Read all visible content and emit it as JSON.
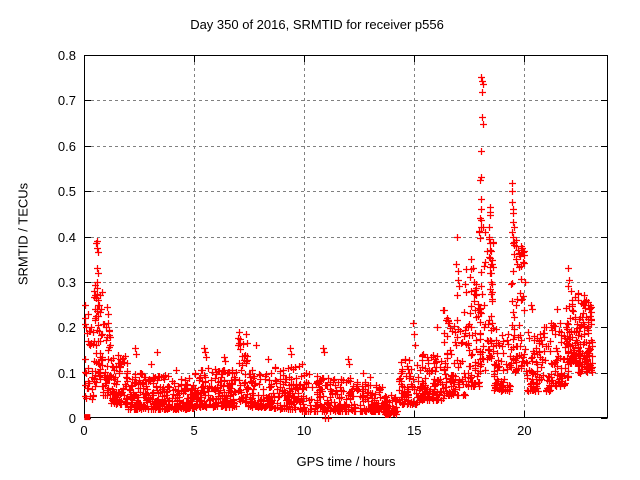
{
  "chart_data": {
    "type": "scatter",
    "title": "Day 350 of 2016, SRMTID for receiver p556",
    "xlabel": "GPS time / hours",
    "ylabel": "SRMTID / TECUs",
    "xlim": [
      0,
      23.8
    ],
    "ylim": [
      0,
      0.8
    ],
    "grid": true,
    "legend": false,
    "x_ticks": [
      {
        "value": 0,
        "label": "0"
      },
      {
        "value": 5,
        "label": "5"
      },
      {
        "value": 10,
        "label": "10"
      },
      {
        "value": 15,
        "label": "15"
      },
      {
        "value": 20,
        "label": "20"
      }
    ],
    "y_ticks": [
      {
        "value": 0.0,
        "label": "0"
      },
      {
        "value": 0.1,
        "label": "0.1"
      },
      {
        "value": 0.2,
        "label": "0.2"
      },
      {
        "value": 0.3,
        "label": "0.3"
      },
      {
        "value": 0.4,
        "label": "0.4"
      },
      {
        "value": 0.5,
        "label": "0.5"
      },
      {
        "value": 0.6,
        "label": "0.6"
      },
      {
        "value": 0.7,
        "label": "0.7"
      },
      {
        "value": 0.8,
        "label": "0.8"
      }
    ],
    "colors": {
      "marker": "#ff0000",
      "axis": "#000000",
      "grid": "#808080",
      "background": "#ffffff"
    },
    "marker": {
      "shape": "plus",
      "size": 7,
      "stroke_width": 1.25
    },
    "origin_square": {
      "x": 0.15,
      "y": 0.002,
      "size": 6
    },
    "seed": 73,
    "points_explicit": [
      [
        0.05,
        0.25
      ],
      [
        0.06,
        0.22
      ],
      [
        0.07,
        0.2
      ],
      [
        0.05,
        0.13
      ],
      [
        0.08,
        0.1
      ],
      [
        0.55,
        0.385
      ],
      [
        0.6,
        0.39
      ],
      [
        0.58,
        0.375
      ],
      [
        0.62,
        0.365
      ],
      [
        0.57,
        0.33
      ],
      [
        0.63,
        0.32
      ],
      [
        0.6,
        0.3
      ],
      [
        0.45,
        0.28
      ],
      [
        0.5,
        0.27
      ],
      [
        0.55,
        0.265
      ],
      [
        0.65,
        0.26
      ],
      [
        0.7,
        0.25
      ],
      [
        0.52,
        0.24
      ],
      [
        0.58,
        0.235
      ],
      [
        0.48,
        0.22
      ],
      [
        1.05,
        0.245
      ],
      [
        1.1,
        0.23
      ],
      [
        1.08,
        0.21
      ],
      [
        1.15,
        0.195
      ],
      [
        2.3,
        0.155
      ],
      [
        2.35,
        0.14
      ],
      [
        3.3,
        0.145
      ],
      [
        3.05,
        0.12
      ],
      [
        4.2,
        0.105
      ],
      [
        5.45,
        0.155
      ],
      [
        5.5,
        0.145
      ],
      [
        5.55,
        0.135
      ],
      [
        6.35,
        0.135
      ],
      [
        6.4,
        0.125
      ],
      [
        7.05,
        0.19
      ],
      [
        7.1,
        0.175
      ],
      [
        7.0,
        0.16
      ],
      [
        7.8,
        0.16
      ],
      [
        8.35,
        0.13
      ],
      [
        9.35,
        0.155
      ],
      [
        9.4,
        0.14
      ],
      [
        9.9,
        0.12
      ],
      [
        10.85,
        0.155
      ],
      [
        10.9,
        0.145
      ],
      [
        10.95,
        0.001
      ],
      [
        11.1,
        0.0
      ],
      [
        12.0,
        0.13
      ],
      [
        12.05,
        0.12
      ],
      [
        12.65,
        0.1
      ],
      [
        13.0,
        0.09
      ],
      [
        14.6,
        0.13
      ],
      [
        14.95,
        0.21
      ],
      [
        15.0,
        0.185
      ],
      [
        15.05,
        0.16
      ],
      [
        16.05,
        0.2
      ],
      [
        16.5,
        0.22
      ],
      [
        16.55,
        0.21
      ],
      [
        16.95,
        0.4
      ],
      [
        16.9,
        0.34
      ],
      [
        17.0,
        0.325
      ],
      [
        16.98,
        0.305
      ],
      [
        17.05,
        0.29
      ],
      [
        16.92,
        0.27
      ],
      [
        17.6,
        0.35
      ],
      [
        17.65,
        0.33
      ],
      [
        17.55,
        0.31
      ],
      [
        17.7,
        0.3
      ],
      [
        17.6,
        0.28
      ],
      [
        18.05,
        0.751
      ],
      [
        18.07,
        0.743
      ],
      [
        18.1,
        0.736
      ],
      [
        18.08,
        0.718
      ],
      [
        18.06,
        0.663
      ],
      [
        18.1,
        0.648
      ],
      [
        18.05,
        0.588
      ],
      [
        18.02,
        0.531
      ],
      [
        18.0,
        0.524
      ],
      [
        18.01,
        0.483
      ],
      [
        18.04,
        0.46
      ],
      [
        18.0,
        0.44
      ],
      [
        18.45,
        0.465
      ],
      [
        18.42,
        0.455
      ],
      [
        18.44,
        0.447
      ],
      [
        18.4,
        0.42
      ],
      [
        18.38,
        0.4
      ],
      [
        18.42,
        0.385
      ],
      [
        18.46,
        0.37
      ],
      [
        18.4,
        0.355
      ],
      [
        18.5,
        0.34
      ],
      [
        18.44,
        0.32
      ],
      [
        18.48,
        0.3
      ],
      [
        19.45,
        0.518
      ],
      [
        19.46,
        0.5
      ],
      [
        19.45,
        0.476
      ],
      [
        19.48,
        0.46
      ],
      [
        19.5,
        0.452
      ],
      [
        19.47,
        0.432
      ],
      [
        19.52,
        0.42
      ],
      [
        19.45,
        0.41
      ],
      [
        19.5,
        0.4
      ],
      [
        19.55,
        0.388
      ],
      [
        19.62,
        0.378
      ],
      [
        19.7,
        0.37
      ],
      [
        19.78,
        0.364
      ],
      [
        19.9,
        0.375
      ],
      [
        19.95,
        0.365
      ],
      [
        20.0,
        0.36
      ],
      [
        19.6,
        0.35
      ],
      [
        19.68,
        0.34
      ],
      [
        19.75,
        0.333
      ],
      [
        20.3,
        0.25
      ],
      [
        20.35,
        0.24
      ],
      [
        20.9,
        0.2
      ],
      [
        21.5,
        0.24
      ],
      [
        22.0,
        0.33
      ],
      [
        22.05,
        0.305
      ],
      [
        21.97,
        0.29
      ],
      [
        22.1,
        0.28
      ],
      [
        22.45,
        0.275
      ],
      [
        22.7,
        0.27
      ],
      [
        22.8,
        0.26
      ],
      [
        23.0,
        0.25
      ]
    ],
    "density_segments": [
      [
        0.02,
        0.4,
        28,
        0.04,
        0.24,
        1.8
      ],
      [
        0.4,
        0.8,
        48,
        0.07,
        0.3,
        1.5
      ],
      [
        0.8,
        1.2,
        42,
        0.05,
        0.22,
        1.7
      ],
      [
        1.2,
        2.0,
        85,
        0.03,
        0.14,
        2.0
      ],
      [
        2.0,
        3.0,
        95,
        0.02,
        0.1,
        2.0
      ],
      [
        3.0,
        4.0,
        95,
        0.02,
        0.095,
        2.0
      ],
      [
        4.0,
        5.0,
        95,
        0.02,
        0.09,
        2.0
      ],
      [
        5.0,
        6.0,
        95,
        0.025,
        0.115,
        2.0
      ],
      [
        6.0,
        7.0,
        95,
        0.025,
        0.11,
        2.0
      ],
      [
        7.0,
        7.4,
        38,
        0.035,
        0.185,
        1.6
      ],
      [
        7.4,
        8.6,
        95,
        0.025,
        0.11,
        2.0
      ],
      [
        8.6,
        9.8,
        95,
        0.02,
        0.115,
        2.0
      ],
      [
        9.8,
        11.3,
        105,
        0.015,
        0.1,
        2.2
      ],
      [
        11.3,
        12.4,
        85,
        0.015,
        0.09,
        2.2
      ],
      [
        12.4,
        13.6,
        85,
        0.015,
        0.08,
        2.2
      ],
      [
        13.6,
        14.3,
        55,
        0.008,
        0.05,
        1.6
      ],
      [
        14.3,
        15.2,
        75,
        0.03,
        0.13,
        1.8
      ],
      [
        15.2,
        16.3,
        95,
        0.04,
        0.145,
        1.8
      ],
      [
        16.3,
        17.3,
        85,
        0.05,
        0.24,
        2.0
      ],
      [
        17.3,
        18.0,
        75,
        0.07,
        0.33,
        1.9
      ],
      [
        17.95,
        18.2,
        30,
        0.1,
        0.44,
        1.4
      ],
      [
        18.3,
        18.6,
        40,
        0.13,
        0.4,
        1.5
      ],
      [
        18.6,
        19.4,
        65,
        0.06,
        0.2,
        1.8
      ],
      [
        19.4,
        20.1,
        65,
        0.1,
        0.4,
        1.7
      ],
      [
        20.1,
        21.2,
        85,
        0.06,
        0.2,
        2.0
      ],
      [
        21.2,
        22.0,
        70,
        0.07,
        0.22,
        1.8
      ],
      [
        21.9,
        22.5,
        65,
        0.12,
        0.28,
        1.5
      ],
      [
        22.4,
        23.1,
        95,
        0.1,
        0.26,
        1.5
      ]
    ]
  }
}
